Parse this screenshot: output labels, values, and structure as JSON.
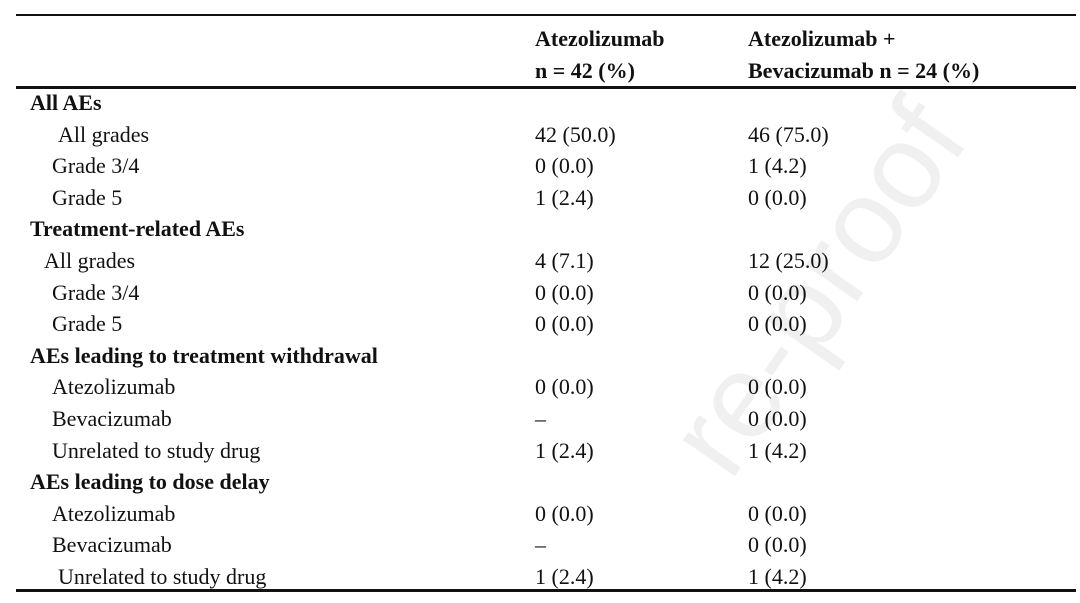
{
  "table": {
    "headers": {
      "col1_line1": "Atezolizumab",
      "col1_line2": "n = 42 (%)",
      "col2_line1": "Atezolizumab +",
      "col2_line2": "Bevacizumab n = 24 (%)"
    },
    "rows": [
      {
        "label": "All AEs",
        "section": true,
        "c1": "",
        "c2": ""
      },
      {
        "label": "All grades",
        "c1": "42 (50.0)",
        "c2": "46 (75.0)"
      },
      {
        "label": "Grade 3/4",
        "c1": "0 (0.0)",
        "c2": "1 (4.2)"
      },
      {
        "label": "Grade 5",
        "c1": "1 (2.4)",
        "c2": "0 (0.0)"
      },
      {
        "label": "Treatment-related AEs",
        "section": true,
        "c1": "",
        "c2": ""
      },
      {
        "label": "All grades",
        "c1": "4 (7.1)",
        "c2": "12 (25.0)"
      },
      {
        "label": "Grade 3/4",
        "c1": "0 (0.0)",
        "c2": "0 (0.0)"
      },
      {
        "label": "Grade 5",
        "c1": "0 (0.0)",
        "c2": "0 (0.0)"
      },
      {
        "label": "AEs leading to treatment withdrawal",
        "section": true,
        "c1": "",
        "c2": ""
      },
      {
        "label": "Atezolizumab",
        "c1": "0 (0.0)",
        "c2": "0 (0.0)"
      },
      {
        "label": "Bevacizumab",
        "c1": "–",
        "c2": "0 (0.0)"
      },
      {
        "label": "Unrelated to study drug",
        "c1": "1 (2.4)",
        "c2": "1 (4.2)"
      },
      {
        "label": "AEs leading to dose delay",
        "section": true,
        "c1": "",
        "c2": ""
      },
      {
        "label": "Atezolizumab",
        "c1": "0 (0.0)",
        "c2": "0 (0.0)"
      },
      {
        "label": "Bevacizumab",
        "c1": "–",
        "c2": "0 (0.0)"
      },
      {
        "label": "Unrelated to study drug",
        "c1": "1 (2.4)",
        "c2": "1 (4.2)"
      }
    ]
  },
  "watermark": "re-proof"
}
